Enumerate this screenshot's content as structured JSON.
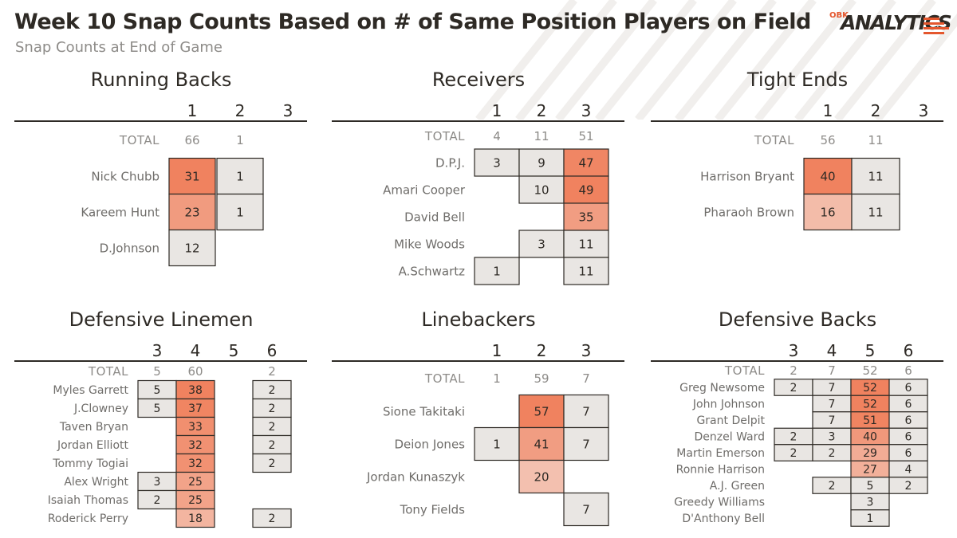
{
  "title": "Week 10 Snap Counts Based on # of Same Position Players on Field",
  "subtitle": "Snap Counts at End of Game",
  "logo": {
    "prefix": "OBK",
    "word": "ANALYTICS"
  },
  "colors": {
    "text": "#2e2a25",
    "muted": "#8d8b88",
    "accent": "#e4572e",
    "empty_cell": "#e9e6e3",
    "cell_border": "#2e2a25"
  },
  "chart_data": [
    {
      "type": "table",
      "title": "Running Backs",
      "columns": [
        1,
        2,
        3
      ],
      "total_label": "TOTAL",
      "totals": [
        66,
        1,
        null
      ],
      "rows": [
        {
          "name": "Nick Chubb",
          "values": [
            31,
            1,
            null
          ]
        },
        {
          "name": "Kareem Hunt",
          "values": [
            23,
            1,
            null
          ]
        },
        {
          "name": "D.Johnson",
          "values": [
            12,
            null,
            null
          ]
        }
      ]
    },
    {
      "type": "table",
      "title": "Receivers",
      "columns": [
        1,
        2,
        3
      ],
      "total_label": "TOTAL",
      "totals": [
        4,
        11,
        51
      ],
      "rows": [
        {
          "name": "D.P.J.",
          "values": [
            3,
            9,
            47
          ]
        },
        {
          "name": "Amari Cooper",
          "values": [
            null,
            10,
            49
          ]
        },
        {
          "name": "David Bell",
          "values": [
            null,
            null,
            35
          ]
        },
        {
          "name": "Mike Woods",
          "values": [
            null,
            3,
            11
          ]
        },
        {
          "name": "A.Schwartz",
          "values": [
            1,
            null,
            11
          ]
        }
      ]
    },
    {
      "type": "table",
      "title": "Tight Ends",
      "columns": [
        1,
        2,
        3
      ],
      "total_label": "TOTAL",
      "totals": [
        56,
        11,
        null
      ],
      "rows": [
        {
          "name": "Harrison Bryant",
          "values": [
            40,
            11,
            null
          ]
        },
        {
          "name": "Pharaoh Brown",
          "values": [
            16,
            11,
            null
          ]
        }
      ]
    },
    {
      "type": "table",
      "title": "Defensive Linemen",
      "columns": [
        3,
        4,
        5,
        6
      ],
      "total_label": "TOTAL",
      "totals": [
        5,
        60,
        null,
        2
      ],
      "rows": [
        {
          "name": "Myles Garrett",
          "values": [
            5,
            38,
            null,
            2
          ]
        },
        {
          "name": "J.Clowney",
          "values": [
            5,
            37,
            null,
            2
          ]
        },
        {
          "name": "Taven Bryan",
          "values": [
            null,
            33,
            null,
            2
          ]
        },
        {
          "name": "Jordan Elliott",
          "values": [
            null,
            32,
            null,
            2
          ]
        },
        {
          "name": "Tommy Togiai",
          "values": [
            null,
            32,
            null,
            2
          ]
        },
        {
          "name": "Alex Wright",
          "values": [
            3,
            25,
            null,
            null
          ]
        },
        {
          "name": "Isaiah Thomas",
          "values": [
            2,
            25,
            null,
            null
          ]
        },
        {
          "name": "Roderick Perry",
          "values": [
            null,
            18,
            null,
            2
          ]
        }
      ]
    },
    {
      "type": "table",
      "title": "Linebackers",
      "columns": [
        1,
        2,
        3
      ],
      "total_label": "TOTAL",
      "totals": [
        1,
        59,
        7
      ],
      "rows": [
        {
          "name": "Sione Takitaki",
          "values": [
            null,
            57,
            7
          ]
        },
        {
          "name": "Deion Jones",
          "values": [
            1,
            41,
            7
          ]
        },
        {
          "name": "Jordan Kunaszyk",
          "values": [
            null,
            20,
            null
          ]
        },
        {
          "name": "Tony Fields",
          "values": [
            null,
            null,
            7
          ]
        }
      ]
    },
    {
      "type": "table",
      "title": "Defensive Backs",
      "columns": [
        3,
        4,
        5,
        6
      ],
      "total_label": "TOTAL",
      "totals": [
        2,
        7,
        52,
        6
      ],
      "rows": [
        {
          "name": "Greg Newsome",
          "values": [
            2,
            7,
            52,
            6
          ]
        },
        {
          "name": "John Johnson",
          "values": [
            null,
            7,
            52,
            6
          ]
        },
        {
          "name": "Grant Delpit",
          "values": [
            null,
            7,
            51,
            6
          ]
        },
        {
          "name": "Denzel Ward",
          "values": [
            2,
            3,
            40,
            6
          ]
        },
        {
          "name": "Martin Emerson",
          "values": [
            2,
            2,
            29,
            6
          ]
        },
        {
          "name": "Ronnie Harrison",
          "values": [
            null,
            null,
            27,
            4
          ]
        },
        {
          "name": "A.J. Green",
          "values": [
            null,
            2,
            5,
            2
          ]
        },
        {
          "name": "Greedy Williams",
          "values": [
            null,
            null,
            3,
            null
          ]
        },
        {
          "name": "D'Anthony Bell",
          "values": [
            null,
            null,
            1,
            null
          ]
        }
      ]
    }
  ]
}
